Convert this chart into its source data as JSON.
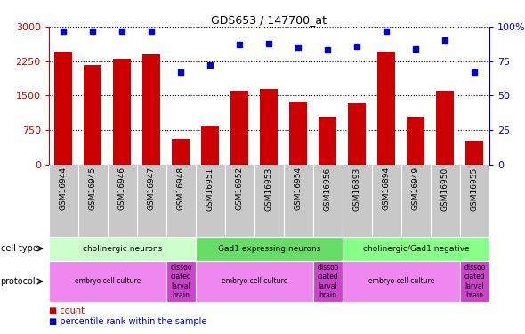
{
  "title": "GDS653 / 147700_at",
  "samples": [
    "GSM16944",
    "GSM16945",
    "GSM16946",
    "GSM16947",
    "GSM16948",
    "GSM16951",
    "GSM16952",
    "GSM16953",
    "GSM16954",
    "GSM16956",
    "GSM16893",
    "GSM16894",
    "GSM16949",
    "GSM16950",
    "GSM16955"
  ],
  "counts": [
    2450,
    2175,
    2300,
    2400,
    560,
    850,
    1600,
    1650,
    1380,
    1050,
    1330,
    2450,
    1050,
    1600,
    530
  ],
  "percentiles": [
    97,
    97,
    97,
    97,
    67,
    72,
    87,
    88,
    85,
    83,
    86,
    97,
    84,
    90,
    67
  ],
  "bar_color": "#cc0000",
  "dot_color": "#0000cc",
  "left_axis_color": "#cc0000",
  "right_axis_color": "#0000cc",
  "ylim_left": [
    0,
    3000
  ],
  "ylim_right": [
    0,
    100
  ],
  "yticks_left": [
    0,
    750,
    1500,
    2250,
    3000
  ],
  "yticks_right": [
    0,
    25,
    50,
    75,
    100
  ],
  "ytick_labels_left": [
    "0",
    "750",
    "1500",
    "2250",
    "3000"
  ],
  "ytick_labels_right": [
    "0",
    "25",
    "50",
    "75",
    "100%"
  ],
  "cell_type_groups": [
    {
      "label": "cholinergic neurons",
      "start": 0,
      "end": 5,
      "color": "#ccffcc"
    },
    {
      "label": "Gad1 expressing neurons",
      "start": 5,
      "end": 10,
      "color": "#66dd66"
    },
    {
      "label": "cholinergic/Gad1 negative",
      "start": 10,
      "end": 15,
      "color": "#88ff88"
    }
  ],
  "protocol_groups": [
    {
      "label": "embryo cell culture",
      "start": 0,
      "end": 4,
      "color": "#ee88ee"
    },
    {
      "label": "dissoo\nciated\nlarval\nbrain",
      "start": 4,
      "end": 5,
      "color": "#cc44cc"
    },
    {
      "label": "embryo cell culture",
      "start": 5,
      "end": 9,
      "color": "#ee88ee"
    },
    {
      "label": "dissoo\nciated\nlarval\nbrain",
      "start": 9,
      "end": 10,
      "color": "#cc44cc"
    },
    {
      "label": "embryo cell culture",
      "start": 10,
      "end": 14,
      "color": "#ee88ee"
    },
    {
      "label": "dissoo\nciated\nlarval\nbrain",
      "start": 14,
      "end": 15,
      "color": "#cc44cc"
    }
  ],
  "legend_count_label": "count",
  "legend_pct_label": "percentile rank within the sample",
  "sample_bg_color": "#c8c8c8",
  "fig_width": 5.9,
  "fig_height": 3.75,
  "fig_dpi": 100
}
